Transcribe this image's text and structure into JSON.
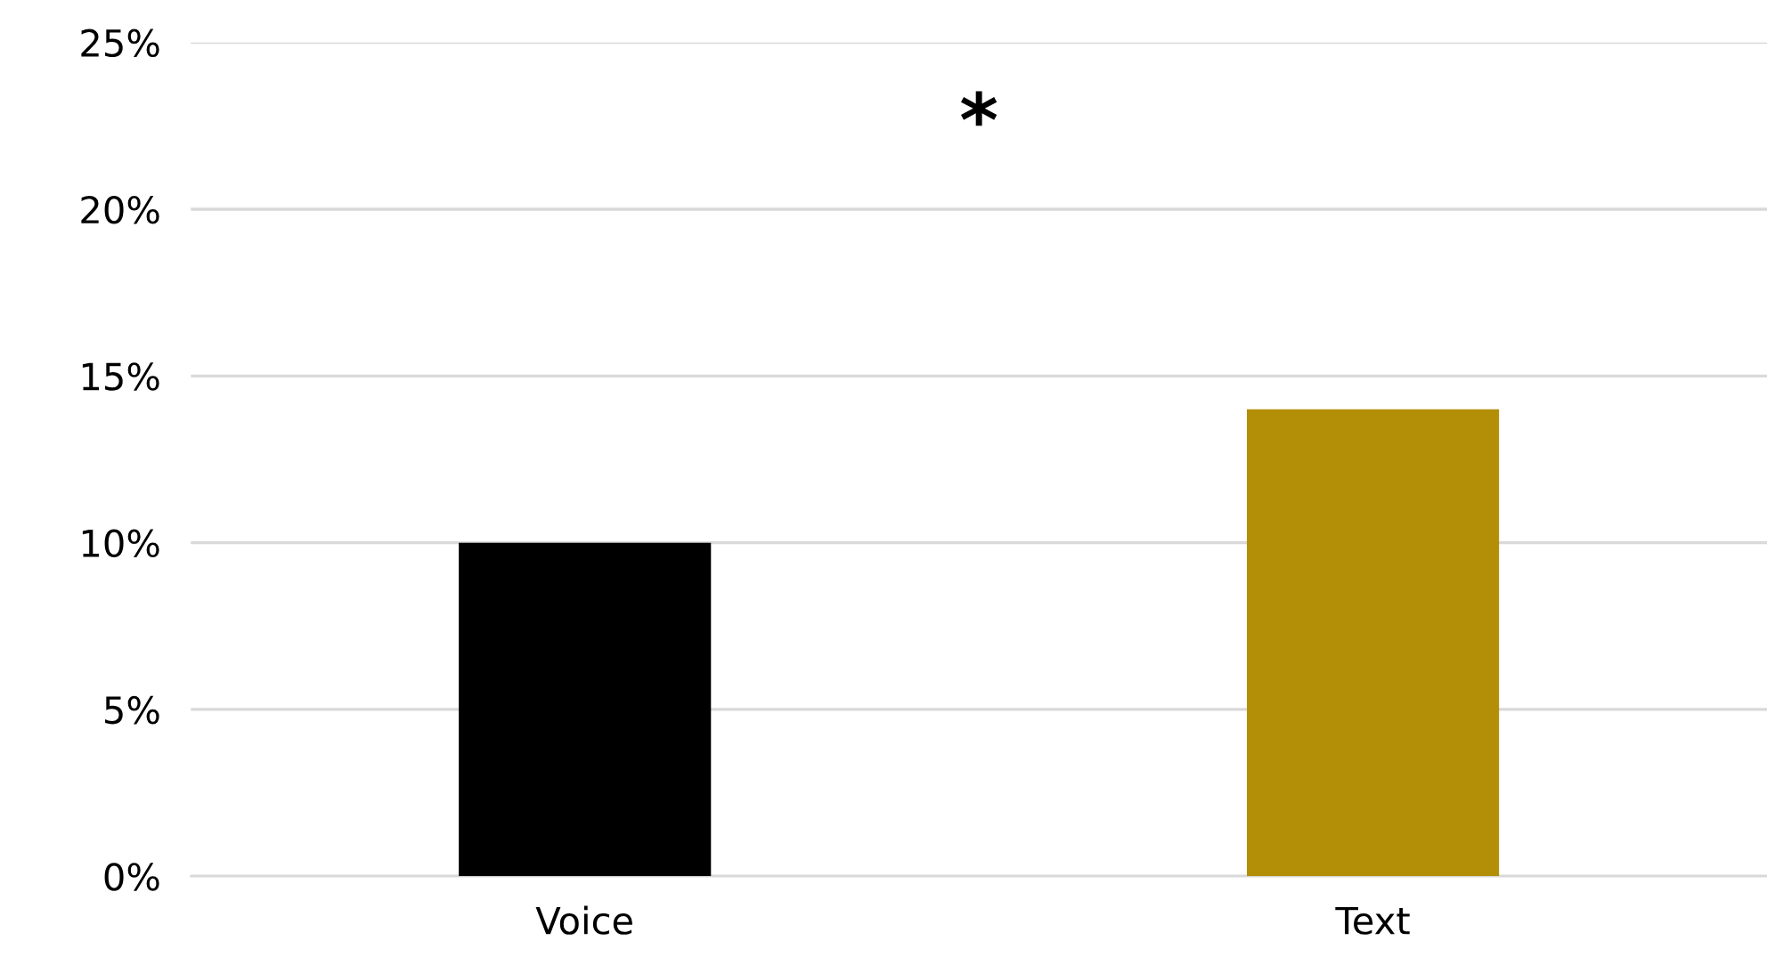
{
  "chart_data": {
    "type": "bar",
    "categories": [
      "Voice",
      "Text"
    ],
    "values": [
      10,
      14
    ],
    "colors": [
      "#000000",
      "#b38f07"
    ],
    "ylim": [
      0,
      25
    ],
    "yticks": [
      {
        "value": 0,
        "label": "0%"
      },
      {
        "value": 5,
        "label": "5%"
      },
      {
        "value": 10,
        "label": "10%"
      },
      {
        "value": 15,
        "label": "15%"
      },
      {
        "value": 20,
        "label": "20%"
      },
      {
        "value": 25,
        "label": "25%"
      }
    ],
    "grid": "y",
    "annotations": [
      "*"
    ]
  }
}
